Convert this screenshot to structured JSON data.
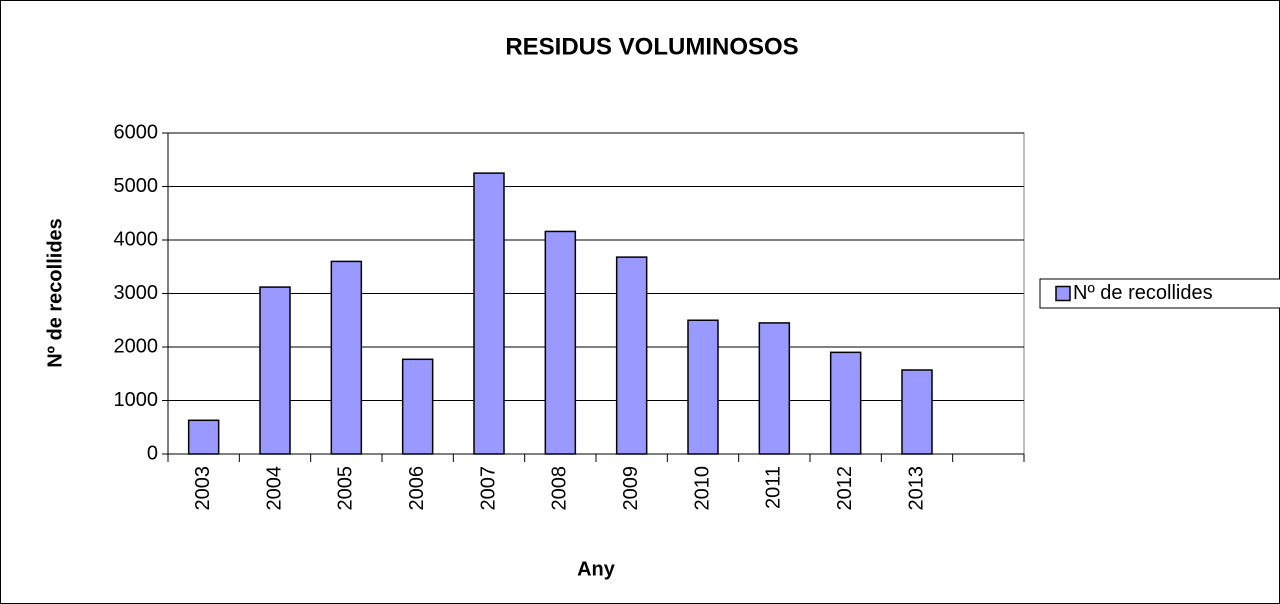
{
  "chart_data": {
    "type": "bar",
    "title": "RESIDUS VOLUMINOSOS",
    "x_label": "Any",
    "y_label": "Nº de recollides",
    "categories": [
      "2003",
      "2004",
      "2005",
      "2006",
      "2007",
      "2008",
      "2009",
      "2010",
      "2011",
      "2012",
      "2013",
      null
    ],
    "series": [
      {
        "name": "Nº de recollides",
        "color": "#9999ff",
        "values": [
          630,
          3120,
          3600,
          1770,
          5250,
          4160,
          3680,
          2500,
          2450,
          1900,
          1570,
          null
        ]
      }
    ],
    "ylim": [
      0,
      6000
    ],
    "yticks": [
      0,
      1000,
      2000,
      3000,
      4000,
      5000,
      6000
    ],
    "grid": true,
    "legend": "right"
  }
}
